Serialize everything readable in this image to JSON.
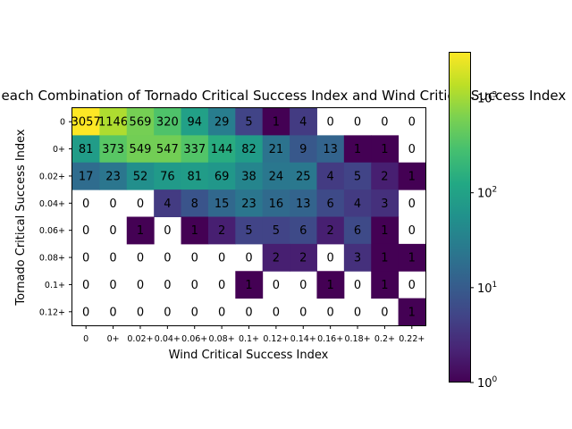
{
  "chart_data": {
    "type": "heatmap",
    "title": "Days with each Combination of Tornado Critical Success Index and Wind Critical Success Index",
    "xlabel": "Wind Critical Success Index",
    "ylabel": "Tornado Critical Success Index",
    "x_categories": [
      "0",
      "0+",
      "0.02+",
      "0.04+",
      "0.06+",
      "0.08+",
      "0.1+",
      "0.12+",
      "0.14+",
      "0.16+",
      "0.18+",
      "0.2+",
      "0.22+"
    ],
    "y_categories": [
      "0",
      "0+",
      "0.02+",
      "0.04+",
      "0.06+",
      "0.08+",
      "0.1+",
      "0.12+"
    ],
    "values": [
      [
        3057,
        1146,
        569,
        320,
        94,
        29,
        5,
        1,
        4,
        0,
        0,
        0,
        0
      ],
      [
        81,
        373,
        549,
        547,
        337,
        144,
        82,
        21,
        9,
        13,
        1,
        1,
        0
      ],
      [
        17,
        23,
        52,
        76,
        81,
        69,
        38,
        24,
        25,
        4,
        5,
        2,
        1
      ],
      [
        0,
        0,
        0,
        4,
        8,
        15,
        23,
        16,
        13,
        6,
        4,
        3,
        0
      ],
      [
        0,
        0,
        1,
        0,
        1,
        2,
        5,
        5,
        6,
        2,
        6,
        1,
        0
      ],
      [
        0,
        0,
        0,
        0,
        0,
        0,
        0,
        2,
        2,
        0,
        3,
        1,
        1
      ],
      [
        0,
        0,
        0,
        0,
        0,
        0,
        1,
        0,
        0,
        1,
        0,
        1,
        0
      ],
      [
        0,
        0,
        0,
        0,
        0,
        0,
        0,
        0,
        0,
        0,
        0,
        0,
        1
      ]
    ],
    "colorbar": {
      "scale": "log",
      "colormap": "viridis",
      "range": [
        1,
        3057
      ],
      "tick_labels": [
        {
          "value": 1,
          "base": "10",
          "exp": "0"
        },
        {
          "value": 10,
          "base": "10",
          "exp": "1"
        },
        {
          "value": 100,
          "base": "10",
          "exp": "2"
        },
        {
          "value": 1000,
          "base": "10",
          "exp": "3"
        }
      ]
    },
    "zero_cells": "blank (white)",
    "grid": false,
    "legend": "colorbar right"
  }
}
